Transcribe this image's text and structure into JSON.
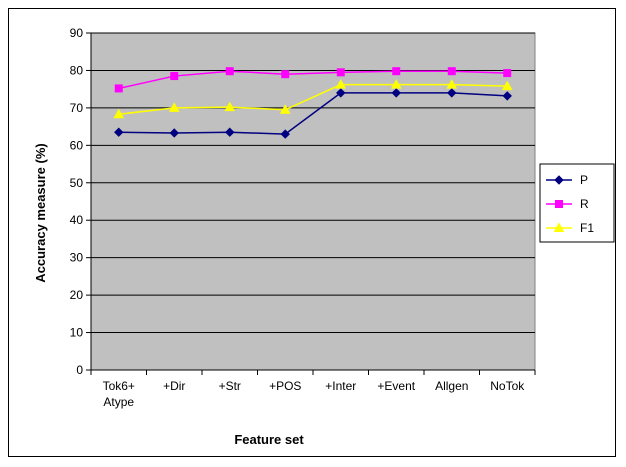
{
  "chart_data": {
    "type": "line",
    "title": "",
    "xlabel": "Feature set",
    "ylabel": "Accuracy measure (%)",
    "ylim": [
      0,
      90
    ],
    "ytick_step": 10,
    "grid": true,
    "legend_position": "right",
    "plot_background": "#c0c0c0",
    "categories": [
      [
        "Tok6+",
        "Atype"
      ],
      [
        "+Dir"
      ],
      [
        "+Str"
      ],
      [
        "+POS"
      ],
      [
        "+Inter"
      ],
      [
        "+Event"
      ],
      [
        "Allgen"
      ],
      [
        "NoTok"
      ]
    ],
    "series": [
      {
        "name": "P",
        "color": "#000080",
        "marker": "diamond",
        "values": [
          63.5,
          63.3,
          63.5,
          63.0,
          74.0,
          74.0,
          74.0,
          73.2
        ]
      },
      {
        "name": "R",
        "color": "#ff00ff",
        "marker": "square",
        "values": [
          75.2,
          78.5,
          79.8,
          79.0,
          79.5,
          79.8,
          79.8,
          79.3
        ]
      },
      {
        "name": "F1",
        "color": "#ffff00",
        "marker": "triangle",
        "values": [
          68.3,
          70.0,
          70.2,
          69.5,
          76.2,
          76.2,
          76.2,
          75.8
        ]
      }
    ]
  }
}
